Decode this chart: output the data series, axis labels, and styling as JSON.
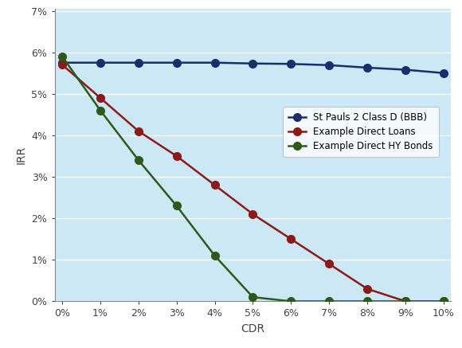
{
  "cdr": [
    0,
    1,
    2,
    3,
    4,
    5,
    6,
    7,
    8,
    9,
    10
  ],
  "clo_bbb": [
    0.0575,
    0.0575,
    0.0575,
    0.0575,
    0.0575,
    0.0573,
    0.0572,
    0.0569,
    0.0563,
    0.0558,
    0.055
  ],
  "direct_loans": [
    0.057,
    0.049,
    0.041,
    0.035,
    0.028,
    0.021,
    0.015,
    0.009,
    0.003,
    0.0,
    0.0
  ],
  "direct_hy": [
    0.059,
    0.046,
    0.034,
    0.023,
    0.011,
    0.001,
    0.0,
    0.0,
    0.0,
    0.0,
    0.0
  ],
  "clo_color": "#1c2d6b",
  "loans_color": "#8b1a1a",
  "hy_color": "#2d5a1b",
  "plot_bg": "#cce8f4",
  "fig_bg": "#ffffff",
  "legend_labels": [
    "St Pauls 2 Class D (BBB)",
    "Example Direct Loans",
    "Example Direct HY Bonds"
  ],
  "xlabel": "CDR",
  "ylabel": "IRR",
  "ylim": [
    0.0,
    0.07
  ],
  "xlim": [
    0,
    10
  ],
  "marker_size": 7,
  "linewidth": 1.8,
  "tick_fontsize": 9,
  "label_fontsize": 10,
  "legend_fontsize": 8.5
}
